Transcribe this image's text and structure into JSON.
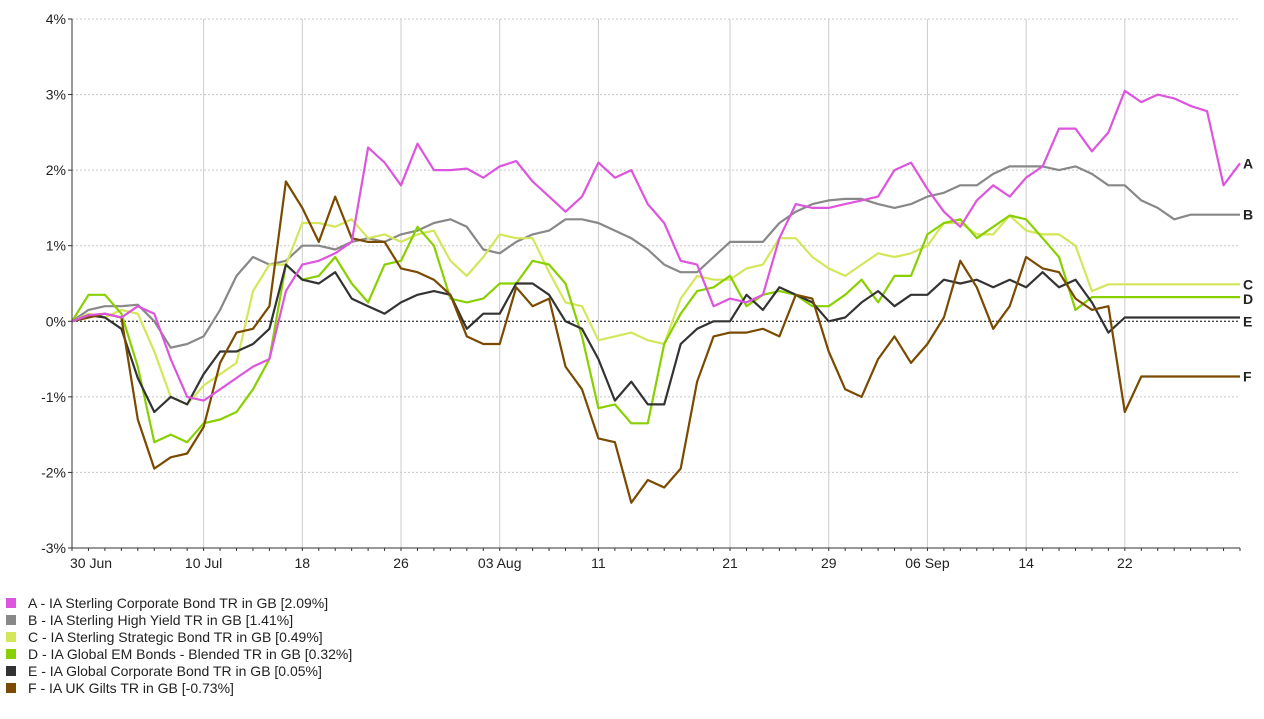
{
  "chart_data": {
    "type": "line",
    "title": "",
    "xlabel": "",
    "ylabel": "",
    "ylim": [
      -3,
      4
    ],
    "y_ticks": [
      "-3%",
      "-2%",
      "-1%",
      "0%",
      "1%",
      "2%",
      "3%",
      "4%"
    ],
    "y_tick_values": [
      -3,
      -2,
      -1,
      0,
      1,
      2,
      3,
      4
    ],
    "x_ticks": [
      "30 Jun",
      "10 Jul",
      "18",
      "26",
      "03 Aug",
      "11",
      "21",
      "29",
      "06 Sep",
      "14",
      "22"
    ],
    "x_tick_indices": [
      0,
      8,
      14,
      20,
      26,
      32,
      40,
      46,
      52,
      58,
      64
    ],
    "x_count": 72,
    "grid": true,
    "legend_position": "bottom-left",
    "series": [
      {
        "key": "A",
        "name": "A - IA Sterling Corporate Bond TR in GB [2.09%]",
        "color": "#dd55dd",
        "values": [
          0,
          0.08,
          0.1,
          0.05,
          0.2,
          0.1,
          -0.5,
          -1.0,
          -1.05,
          -0.9,
          -0.75,
          -0.6,
          -0.5,
          0.4,
          0.75,
          0.8,
          0.9,
          1.05,
          2.3,
          2.1,
          1.8,
          2.35,
          2.0,
          2.0,
          2.02,
          1.9,
          2.05,
          2.12,
          1.85,
          1.65,
          1.45,
          1.65,
          2.1,
          1.9,
          2.0,
          1.55,
          1.3,
          0.8,
          0.75,
          0.2,
          0.3,
          0.25,
          0.35,
          1.1,
          1.55,
          1.5,
          1.5,
          1.55,
          1.6,
          1.65,
          2.0,
          2.1,
          1.75,
          1.45,
          1.25,
          1.6,
          1.8,
          1.65,
          1.9,
          2.05,
          2.55,
          2.55,
          2.25,
          2.5,
          3.05,
          2.9,
          3.0,
          2.95,
          2.85,
          2.78,
          1.8,
          2.09
        ]
      },
      {
        "key": "B",
        "name": "B - IA Sterling High Yield TR in GB [1.41%]",
        "color": "#888888",
        "values": [
          0,
          0.15,
          0.2,
          0.2,
          0.22,
          0.0,
          -0.35,
          -0.3,
          -0.2,
          0.15,
          0.6,
          0.85,
          0.75,
          0.8,
          1.0,
          1.0,
          0.95,
          1.05,
          1.1,
          1.05,
          1.15,
          1.2,
          1.3,
          1.35,
          1.25,
          0.95,
          0.9,
          1.05,
          1.15,
          1.2,
          1.35,
          1.35,
          1.3,
          1.2,
          1.1,
          0.95,
          0.75,
          0.65,
          0.65,
          0.85,
          1.05,
          1.05,
          1.05,
          1.3,
          1.45,
          1.55,
          1.6,
          1.62,
          1.62,
          1.55,
          1.5,
          1.55,
          1.65,
          1.7,
          1.8,
          1.8,
          1.95,
          2.05,
          2.05,
          2.05,
          2.0,
          2.05,
          1.95,
          1.8,
          1.8,
          1.6,
          1.5,
          1.35,
          1.41,
          1.41,
          1.41,
          1.41
        ]
      },
      {
        "key": "C",
        "name": "C - IA Sterling Strategic Bond TR in GB [0.49%]",
        "color": "#d4e65a",
        "values": [
          0,
          0.1,
          0.05,
          0.15,
          0.1,
          -0.4,
          -1.0,
          -1.1,
          -0.85,
          -0.7,
          -0.55,
          0.4,
          0.75,
          0.75,
          1.3,
          1.3,
          1.25,
          1.35,
          1.1,
          1.15,
          1.05,
          1.15,
          1.2,
          0.8,
          0.6,
          0.85,
          1.15,
          1.1,
          1.1,
          0.65,
          0.25,
          0.2,
          -0.25,
          -0.2,
          -0.15,
          -0.25,
          -0.3,
          0.3,
          0.6,
          0.55,
          0.55,
          0.7,
          0.75,
          1.1,
          1.1,
          0.85,
          0.7,
          0.6,
          0.75,
          0.9,
          0.85,
          0.9,
          1.0,
          1.3,
          1.3,
          1.15,
          1.15,
          1.4,
          1.2,
          1.15,
          1.15,
          1.0,
          0.4,
          0.49,
          0.49,
          0.49,
          0.49,
          0.49,
          0.49,
          0.49,
          0.49,
          0.49
        ]
      },
      {
        "key": "D",
        "name": "D - IA Global EM Bonds - Blended TR in GB [0.32%]",
        "color": "#88d000",
        "values": [
          0,
          0.35,
          0.35,
          0.1,
          -0.6,
          -1.6,
          -1.5,
          -1.6,
          -1.35,
          -1.3,
          -1.2,
          -0.9,
          -0.5,
          0.75,
          0.55,
          0.6,
          0.85,
          0.5,
          0.25,
          0.75,
          0.8,
          1.25,
          1.0,
          0.3,
          0.25,
          0.3,
          0.5,
          0.5,
          0.8,
          0.75,
          0.5,
          -0.2,
          -1.15,
          -1.1,
          -1.35,
          -1.35,
          -0.3,
          0.1,
          0.4,
          0.45,
          0.6,
          0.2,
          0.35,
          0.4,
          0.35,
          0.2,
          0.2,
          0.35,
          0.55,
          0.25,
          0.6,
          0.6,
          1.15,
          1.3,
          1.35,
          1.1,
          1.25,
          1.4,
          1.35,
          1.1,
          0.85,
          0.15,
          0.32,
          0.32,
          0.32,
          0.32,
          0.32,
          0.32,
          0.32,
          0.32,
          0.32,
          0.32
        ]
      },
      {
        "key": "E",
        "name": "E - IA Global Corporate Bond TR in GB [0.05%]",
        "color": "#333333",
        "values": [
          0,
          0.08,
          0.05,
          -0.1,
          -0.75,
          -1.2,
          -1.0,
          -1.1,
          -0.7,
          -0.4,
          -0.4,
          -0.3,
          -0.1,
          0.75,
          0.55,
          0.5,
          0.65,
          0.3,
          0.2,
          0.1,
          0.25,
          0.35,
          0.4,
          0.35,
          -0.1,
          0.1,
          0.1,
          0.5,
          0.5,
          0.35,
          0.0,
          -0.1,
          -0.5,
          -1.05,
          -0.8,
          -1.1,
          -1.1,
          -0.3,
          -0.1,
          0.0,
          0.0,
          0.35,
          0.15,
          0.45,
          0.35,
          0.25,
          0.0,
          0.05,
          0.25,
          0.4,
          0.2,
          0.35,
          0.35,
          0.55,
          0.5,
          0.55,
          0.45,
          0.55,
          0.45,
          0.65,
          0.45,
          0.55,
          0.25,
          -0.15,
          0.05,
          0.05,
          0.05,
          0.05,
          0.05,
          0.05,
          0.05,
          0.05
        ]
      },
      {
        "key": "F",
        "name": "F - IA UK Gilts TR in GB [-0.73%]",
        "color": "#7a4a00",
        "values": [
          0,
          0.05,
          0.1,
          0.05,
          -1.3,
          -1.95,
          -1.8,
          -1.75,
          -1.4,
          -0.55,
          -0.15,
          -0.1,
          0.2,
          1.85,
          1.5,
          1.05,
          1.65,
          1.1,
          1.05,
          1.05,
          0.7,
          0.65,
          0.55,
          0.35,
          -0.2,
          -0.3,
          -0.3,
          0.45,
          0.2,
          0.3,
          -0.6,
          -0.9,
          -1.55,
          -1.6,
          -2.4,
          -2.1,
          -2.2,
          -1.95,
          -0.8,
          -0.2,
          -0.15,
          -0.15,
          -0.1,
          -0.2,
          0.35,
          0.3,
          -0.4,
          -0.9,
          -1.0,
          -0.5,
          -0.2,
          -0.55,
          -0.3,
          0.05,
          0.8,
          0.45,
          -0.1,
          0.2,
          0.85,
          0.7,
          0.65,
          0.3,
          0.15,
          0.2,
          -1.2,
          -0.73,
          -0.73,
          -0.73,
          -0.73,
          -0.73,
          -0.73,
          -0.73
        ]
      }
    ]
  }
}
